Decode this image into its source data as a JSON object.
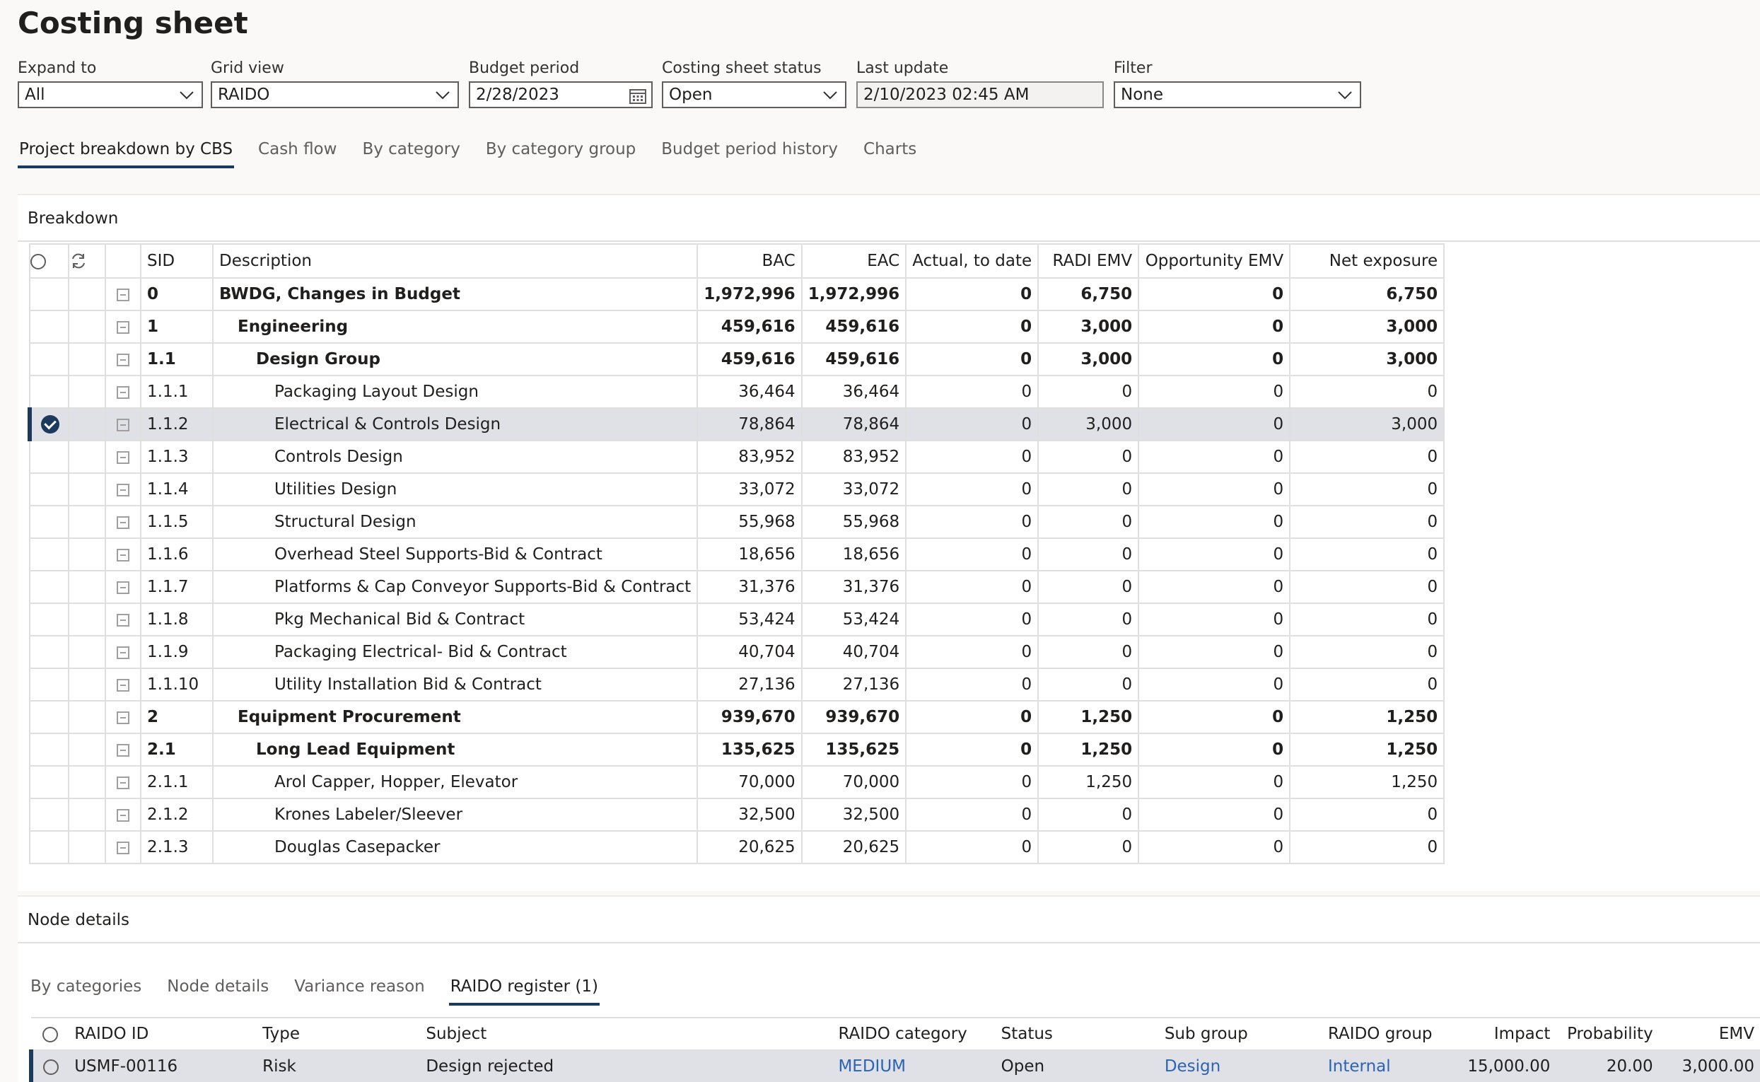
{
  "page": {
    "title": "Costing sheet"
  },
  "filters": {
    "expand_to": {
      "label": "Expand to",
      "value": "All"
    },
    "grid_view": {
      "label": "Grid view",
      "value": "RAIDO"
    },
    "budget_period": {
      "label": "Budget period",
      "value": "2/28/2023"
    },
    "status": {
      "label": "Costing sheet status",
      "value": "Open"
    },
    "last_update": {
      "label": "Last update",
      "value": "2/10/2023 02:45 AM"
    },
    "filter": {
      "label": "Filter",
      "value": "None"
    }
  },
  "tabs": [
    "Project breakdown by CBS",
    "Cash flow",
    "By category",
    "By category group",
    "Budget period history",
    "Charts"
  ],
  "breakdown": {
    "title": "Breakdown",
    "columns": {
      "sid": "SID",
      "description": "Description",
      "bac": "BAC",
      "eac": "EAC",
      "actual": "Actual, to date",
      "radi": "RADI EMV",
      "opp": "Opportunity EMV",
      "net": "Net exposure"
    },
    "rows": [
      {
        "sid": "0",
        "description": "BWDG, Changes in Budget",
        "bac": "1,972,996",
        "eac": "1,972,996",
        "actual": "0",
        "radi": "6,750",
        "opp": "0",
        "net": "6,750",
        "level": 1,
        "bold": true
      },
      {
        "sid": "1",
        "description": "Engineering",
        "bac": "459,616",
        "eac": "459,616",
        "actual": "0",
        "radi": "3,000",
        "opp": "0",
        "net": "3,000",
        "level": 2,
        "bold": true
      },
      {
        "sid": "1.1",
        "description": "Design Group",
        "bac": "459,616",
        "eac": "459,616",
        "actual": "0",
        "radi": "3,000",
        "opp": "0",
        "net": "3,000",
        "level": 3,
        "bold": true
      },
      {
        "sid": "1.1.1",
        "description": "Packaging Layout Design",
        "bac": "36,464",
        "eac": "36,464",
        "actual": "0",
        "radi": "0",
        "opp": "0",
        "net": "0",
        "level": 4
      },
      {
        "sid": "1.1.2",
        "description": "Electrical & Controls Design",
        "bac": "78,864",
        "eac": "78,864",
        "actual": "0",
        "radi": "3,000",
        "opp": "0",
        "net": "3,000",
        "level": 4,
        "selected": true
      },
      {
        "sid": "1.1.3",
        "description": "Controls Design",
        "bac": "83,952",
        "eac": "83,952",
        "actual": "0",
        "radi": "0",
        "opp": "0",
        "net": "0",
        "level": 4
      },
      {
        "sid": "1.1.4",
        "description": "Utilities Design",
        "bac": "33,072",
        "eac": "33,072",
        "actual": "0",
        "radi": "0",
        "opp": "0",
        "net": "0",
        "level": 4
      },
      {
        "sid": "1.1.5",
        "description": "Structural Design",
        "bac": "55,968",
        "eac": "55,968",
        "actual": "0",
        "radi": "0",
        "opp": "0",
        "net": "0",
        "level": 4
      },
      {
        "sid": "1.1.6",
        "description": "Overhead Steel Supports-Bid & Contract",
        "bac": "18,656",
        "eac": "18,656",
        "actual": "0",
        "radi": "0",
        "opp": "0",
        "net": "0",
        "level": 4
      },
      {
        "sid": "1.1.7",
        "description": "Platforms & Cap Conveyor Supports-Bid & Contract",
        "bac": "31,376",
        "eac": "31,376",
        "actual": "0",
        "radi": "0",
        "opp": "0",
        "net": "0",
        "level": 4
      },
      {
        "sid": "1.1.8",
        "description": "Pkg Mechanical Bid & Contract",
        "bac": "53,424",
        "eac": "53,424",
        "actual": "0",
        "radi": "0",
        "opp": "0",
        "net": "0",
        "level": 4
      },
      {
        "sid": "1.1.9",
        "description": "Packaging Electrical- Bid & Contract",
        "bac": "40,704",
        "eac": "40,704",
        "actual": "0",
        "radi": "0",
        "opp": "0",
        "net": "0",
        "level": 4
      },
      {
        "sid": "1.1.10",
        "description": "Utility Installation Bid & Contract",
        "bac": "27,136",
        "eac": "27,136",
        "actual": "0",
        "radi": "0",
        "opp": "0",
        "net": "0",
        "level": 4
      },
      {
        "sid": "2",
        "description": "Equipment Procurement",
        "bac": "939,670",
        "eac": "939,670",
        "actual": "0",
        "radi": "1,250",
        "opp": "0",
        "net": "1,250",
        "level": 2,
        "bold": true
      },
      {
        "sid": "2.1",
        "description": "Long Lead Equipment",
        "bac": "135,625",
        "eac": "135,625",
        "actual": "0",
        "radi": "1,250",
        "opp": "0",
        "net": "1,250",
        "level": 3,
        "bold": true
      },
      {
        "sid": "2.1.1",
        "description": "Arol Capper, Hopper, Elevator",
        "bac": "70,000",
        "eac": "70,000",
        "actual": "0",
        "radi": "1,250",
        "opp": "0",
        "net": "1,250",
        "level": 4
      },
      {
        "sid": "2.1.2",
        "description": "Krones Labeler/Sleever",
        "bac": "32,500",
        "eac": "32,500",
        "actual": "0",
        "radi": "0",
        "opp": "0",
        "net": "0",
        "level": 4
      },
      {
        "sid": "2.1.3",
        "description": "Douglas Casepacker",
        "bac": "20,625",
        "eac": "20,625",
        "actual": "0",
        "radi": "0",
        "opp": "0",
        "net": "0",
        "level": 4
      }
    ]
  },
  "node_details": {
    "title": "Node details",
    "tabs": [
      "By categories",
      "Node details",
      "Variance reason",
      "RAIDO register (1)"
    ],
    "columns": {
      "id": "RAIDO ID",
      "type": "Type",
      "subject": "Subject",
      "category": "RAIDO category",
      "status": "Status",
      "subgroup": "Sub group",
      "group": "RAIDO group",
      "impact": "Impact",
      "probability": "Probability",
      "emv": "EMV"
    },
    "rows": [
      {
        "id": "USMF-00116",
        "type": "Risk",
        "subject": "Design rejected",
        "category": "MEDIUM",
        "status": "Open",
        "subgroup": "Design",
        "group": "Internal",
        "impact": "15,000.00",
        "probability": "20.00",
        "emv": "3,000.00"
      }
    ]
  },
  "colors": {
    "accent": "#1b3a5c",
    "link": "#2b64b3",
    "selected_row": "#e0e0e7"
  }
}
